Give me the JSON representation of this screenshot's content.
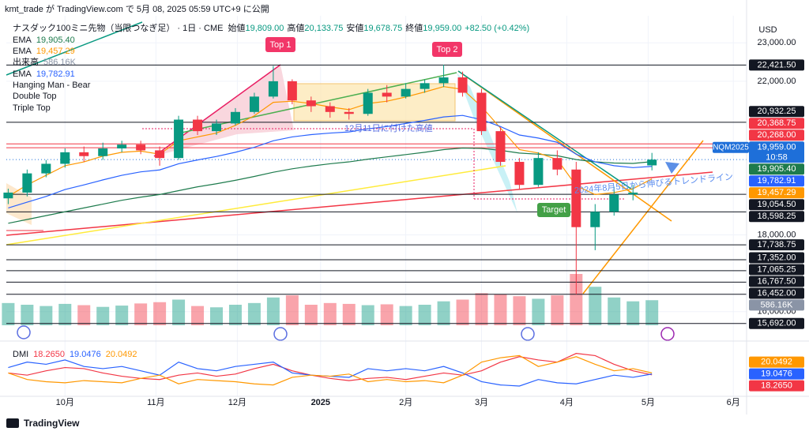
{
  "header": "kmt_trade が TradingView.com で 5月 08, 2025 05:59 UTC+9 に公開",
  "footer": "TradingView",
  "chart_data": {
    "type": "candlestick",
    "symbol_title": "ナスダック100ミニ先物（当限つなぎ足） · 1日 · CME",
    "ohlc_header": [
      {
        "label": "始値",
        "value_label": "19,809.00"
      },
      {
        "label": "高値",
        "value_label": "20,133.75"
      },
      {
        "label": "安値",
        "value_label": "19,678.75"
      },
      {
        "label": "終値",
        "value_label": "19,959.00"
      }
    ],
    "change_label": "+82.50 (+0.42%)",
    "currency": "USD",
    "up_color": "#089981",
    "down_color": "#f23645",
    "open": [
      18950,
      19100,
      19600,
      19850,
      20150,
      20050,
      20250,
      20350,
      20200,
      20000,
      21000,
      20700,
      20900,
      21200,
      21600,
      22000,
      21500,
      21350,
      21200,
      21150,
      21700,
      21600,
      21800,
      21950,
      22100,
      21700,
      20700,
      19900,
      19300,
      20000,
      19700,
      18200,
      18600,
      19050,
      19809
    ],
    "high": [
      19200,
      19700,
      19950,
      20250,
      20300,
      20400,
      20450,
      20450,
      20300,
      21100,
      21100,
      21000,
      21300,
      21700,
      22400,
      22050,
      21600,
      21450,
      21300,
      21800,
      21900,
      21950,
      22050,
      22430,
      22250,
      21800,
      20800,
      20000,
      20150,
      20200,
      19900,
      18800,
      19250,
      19300,
      20133.75
    ],
    "low": [
      18800,
      19000,
      19500,
      19750,
      19900,
      19950,
      20150,
      20100,
      19800,
      19950,
      20600,
      20600,
      20850,
      21150,
      21550,
      21400,
      21200,
      21050,
      21000,
      21100,
      21450,
      21550,
      21700,
      21850,
      21600,
      20600,
      19800,
      19200,
      19250,
      19550,
      16452,
      17600,
      18500,
      18900,
      19678.75
    ],
    "close": [
      19100,
      19600,
      19850,
      20150,
      20050,
      20250,
      20350,
      20200,
      20000,
      21000,
      20700,
      20900,
      21200,
      21600,
      22000,
      21500,
      21350,
      21200,
      21150,
      21700,
      21600,
      21800,
      21950,
      22100,
      21700,
      20700,
      19900,
      19300,
      20000,
      19700,
      18200,
      18600,
      19050,
      19100,
      19959
    ],
    "xlim": [
      -0.1,
      39
    ],
    "xticks": [
      {
        "value": 3.0,
        "label": "10月"
      },
      {
        "value": 7.8,
        "label": "11月"
      },
      {
        "value": 12.1,
        "label": "12月"
      },
      {
        "value": 16.5,
        "label": "2025"
      },
      {
        "value": 21.0,
        "label": "2月"
      },
      {
        "value": 25.0,
        "label": "3月"
      },
      {
        "value": 29.5,
        "label": "4月"
      },
      {
        "value": 33.8,
        "label": "5月"
      },
      {
        "value": 38.3,
        "label": "6月"
      }
    ],
    "ylim": [
      15480,
      23540
    ],
    "yticks": [
      {
        "value": 23000,
        "label": "23,000.00"
      },
      {
        "value": 22000,
        "label": "22,000.00"
      },
      {
        "value": 18000,
        "label": "18,000.00"
      },
      {
        "value": 16000,
        "label": "16,000.00"
      }
    ],
    "grid": true,
    "ema_series": [
      {
        "name": "EMA",
        "color": "#1e7b4d",
        "value_label": "19,905.40",
        "values": [
          18300,
          18400,
          18500,
          18600,
          18700,
          18800,
          18900,
          18980,
          19050,
          19150,
          19250,
          19330,
          19420,
          19520,
          19630,
          19720,
          19790,
          19850,
          19900,
          19970,
          20030,
          20090,
          20150,
          20220,
          20260,
          20250,
          20200,
          20130,
          20100,
          20060,
          19960,
          19900,
          19870,
          19860,
          19905.4
        ]
      },
      {
        "name": "EMA",
        "color": "#ff9800",
        "value_label": "19,457.29",
        "values": [
          19000,
          19300,
          19550,
          19800,
          19900,
          20050,
          20150,
          20180,
          20100,
          20450,
          20550,
          20650,
          20850,
          21100,
          21450,
          21480,
          21420,
          21330,
          21260,
          21420,
          21480,
          21590,
          21720,
          21860,
          21790,
          21340,
          20780,
          20220,
          20130,
          19960,
          19280,
          19050,
          19100,
          19200,
          19457.29
        ]
      },
      {
        "name": "EMA",
        "color": "#2962ff",
        "value_label": "19,782.91",
        "values": [
          18700,
          18850,
          19000,
          19180,
          19300,
          19430,
          19550,
          19640,
          19690,
          19850,
          19950,
          20040,
          20150,
          20280,
          20450,
          20550,
          20610,
          20650,
          20680,
          20760,
          20820,
          20900,
          20980,
          21070,
          21110,
          21000,
          20820,
          20600,
          20520,
          20410,
          20100,
          19900,
          19800,
          19750,
          19782.91
        ]
      }
    ],
    "volume": {
      "name": "出来高",
      "value_label": "586.16K",
      "label_color": "#8a94a6",
      "vlim": [
        0,
        2400000
      ],
      "values": [
        520000,
        480000,
        450000,
        500000,
        470000,
        430000,
        460000,
        510000,
        540000,
        600000,
        450000,
        420000,
        480000,
        520000,
        650000,
        700000,
        480000,
        520000,
        500000,
        470000,
        490000,
        450000,
        480000,
        560000,
        600000,
        750000,
        720000,
        680000,
        620000,
        700000,
        1200000,
        900000,
        650000,
        560000,
        586160
      ]
    },
    "patterns": [
      "Hanging Man - Bear",
      "Double Top",
      "Triple Top"
    ],
    "price_levels": [
      {
        "value": 22421.5,
        "label": "22,421.50",
        "color": "#131722"
      },
      {
        "value": 20932.25,
        "label": "20,932.25",
        "color": "#131722"
      },
      {
        "value": 20368.75,
        "label": "20,368.75",
        "color": "#f23645"
      },
      {
        "value": 20268,
        "label": "20,268.00",
        "color": "#f23645"
      },
      {
        "value": 19959,
        "label": "19,959.00",
        "color": "#1e6fd9",
        "time": "10:58",
        "symbol": "NQM2025"
      },
      {
        "value": 19054.5,
        "label": "19,054.50",
        "color": "#131722"
      },
      {
        "value": 18598.25,
        "label": "18,598.25",
        "color": "#131722"
      },
      {
        "value": 17738.75,
        "label": "17,738.75",
        "color": "#131722"
      },
      {
        "value": 17352,
        "label": "17,352.00",
        "color": "#131722"
      },
      {
        "value": 17065.25,
        "label": "17,065.25",
        "color": "#131722"
      },
      {
        "value": 16767.5,
        "label": "16,767.50",
        "color": "#131722"
      },
      {
        "value": 16452,
        "label": "16,452.00",
        "color": "#131722"
      },
      {
        "value": 15692,
        "label": "15,692.00",
        "color": "#131722"
      }
    ],
    "dmi": {
      "name": "DMI",
      "ylim": [
        0,
        45
      ],
      "series": [
        {
          "color": "#f23645",
          "value_label": "18.2650",
          "values": [
            20,
            18,
            22,
            25,
            24,
            20,
            17,
            15,
            14,
            18,
            20,
            17,
            19,
            24,
            28,
            22,
            18,
            15,
            13,
            15,
            16,
            14,
            17,
            20,
            18,
            22,
            30,
            35,
            32,
            30,
            38,
            36,
            28,
            22,
            18.265
          ]
        },
        {
          "color": "#2962ff",
          "value_label": "19.0476",
          "values": [
            25,
            30,
            28,
            32,
            26,
            24,
            26,
            22,
            18,
            30,
            24,
            22,
            26,
            28,
            30,
            20,
            18,
            17,
            16,
            24,
            22,
            24,
            22,
            26,
            20,
            12,
            9,
            8,
            14,
            11,
            10,
            14,
            18,
            16,
            19.0476
          ]
        },
        {
          "color": "#ff9800",
          "value_label": "20.0492",
          "values": [
            20,
            14,
            12,
            11,
            13,
            12,
            11,
            15,
            18,
            10,
            14,
            13,
            12,
            10,
            9,
            16,
            18,
            17,
            19,
            12,
            14,
            12,
            13,
            11,
            18,
            30,
            34,
            36,
            26,
            30,
            35,
            28,
            22,
            24,
            20.0492
          ]
        }
      ]
    },
    "annotations": {
      "top1": "Top 1",
      "top2": "Top 2",
      "target": "Target",
      "high_note": "12月11日に付けた高値",
      "trendline_note": "2024年8月5日から伸びるトレンドライン"
    }
  }
}
